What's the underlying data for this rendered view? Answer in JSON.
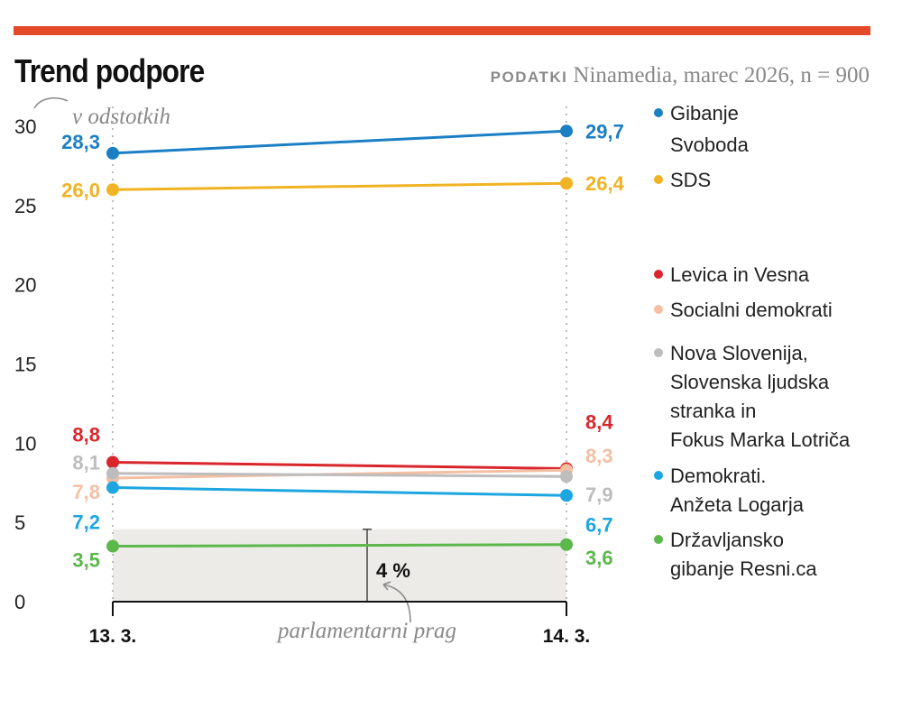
{
  "title": "Trend podpore",
  "source_label": "PODATKI",
  "source_text": "Ninamedia, marec 2026, n = 900",
  "chart_data": {
    "type": "line",
    "title": "Trend podpore",
    "unit_note": "v odstotkih",
    "x": [
      "13. 3.",
      "14. 3."
    ],
    "ylim": [
      0,
      30
    ],
    "yticks": [
      0,
      5,
      10,
      15,
      20,
      25,
      30
    ],
    "grid": false,
    "legend_placement": "right",
    "threshold": {
      "value": 4,
      "label": "4 %",
      "annotation": "parlamentarni prag",
      "color": "#ebebE8"
    },
    "series": [
      {
        "name": "Gibanje Svoboda",
        "legend_lines": [
          "Gibanje",
          "Svoboda"
        ],
        "color": "#1b7fc4",
        "values": [
          28.3,
          29.7
        ],
        "labels": [
          "28,3",
          "29,7"
        ]
      },
      {
        "name": "SDS",
        "legend_lines": [
          "SDS"
        ],
        "color": "#f0b323",
        "values": [
          26.0,
          26.4
        ],
        "labels": [
          "26,0",
          "26,4"
        ]
      },
      {
        "name": "Levica in Vesna",
        "legend_lines": [
          "Levica in Vesna"
        ],
        "color": "#d9262c",
        "values": [
          8.8,
          8.4
        ],
        "labels": [
          "8,8",
          "8,4"
        ]
      },
      {
        "name": "Socialni demokrati",
        "legend_lines": [
          "Socialni demokrati"
        ],
        "color": "#f4bfa3",
        "values": [
          7.8,
          8.3
        ],
        "labels": [
          "7,8",
          "8,3"
        ]
      },
      {
        "name": "Nova Slovenija, Slovenska ljudska stranka in Fokus Marka Lotriča",
        "legend_lines": [
          "Nova Slovenija,",
          "Slovenska ljudska",
          "stranka in",
          "Fokus Marka Lotriča"
        ],
        "color": "#bdbdbd",
        "values": [
          8.1,
          7.9
        ],
        "labels": [
          "8,1",
          "7,9"
        ]
      },
      {
        "name": "Demokrati. Anžeta Logarja",
        "legend_lines": [
          "Demokrati.",
          "Anžeta Logarja"
        ],
        "color": "#1ea6e0",
        "values": [
          7.2,
          6.7
        ],
        "labels": [
          "7,2",
          "6,7"
        ]
      },
      {
        "name": "Državljansko gibanje Resni.ca",
        "legend_lines": [
          "Državljansko",
          "gibanje Resni.ca"
        ],
        "color": "#5cb84a",
        "values": [
          3.5,
          3.6
        ],
        "labels": [
          "3,5",
          "3,6"
        ]
      }
    ]
  }
}
